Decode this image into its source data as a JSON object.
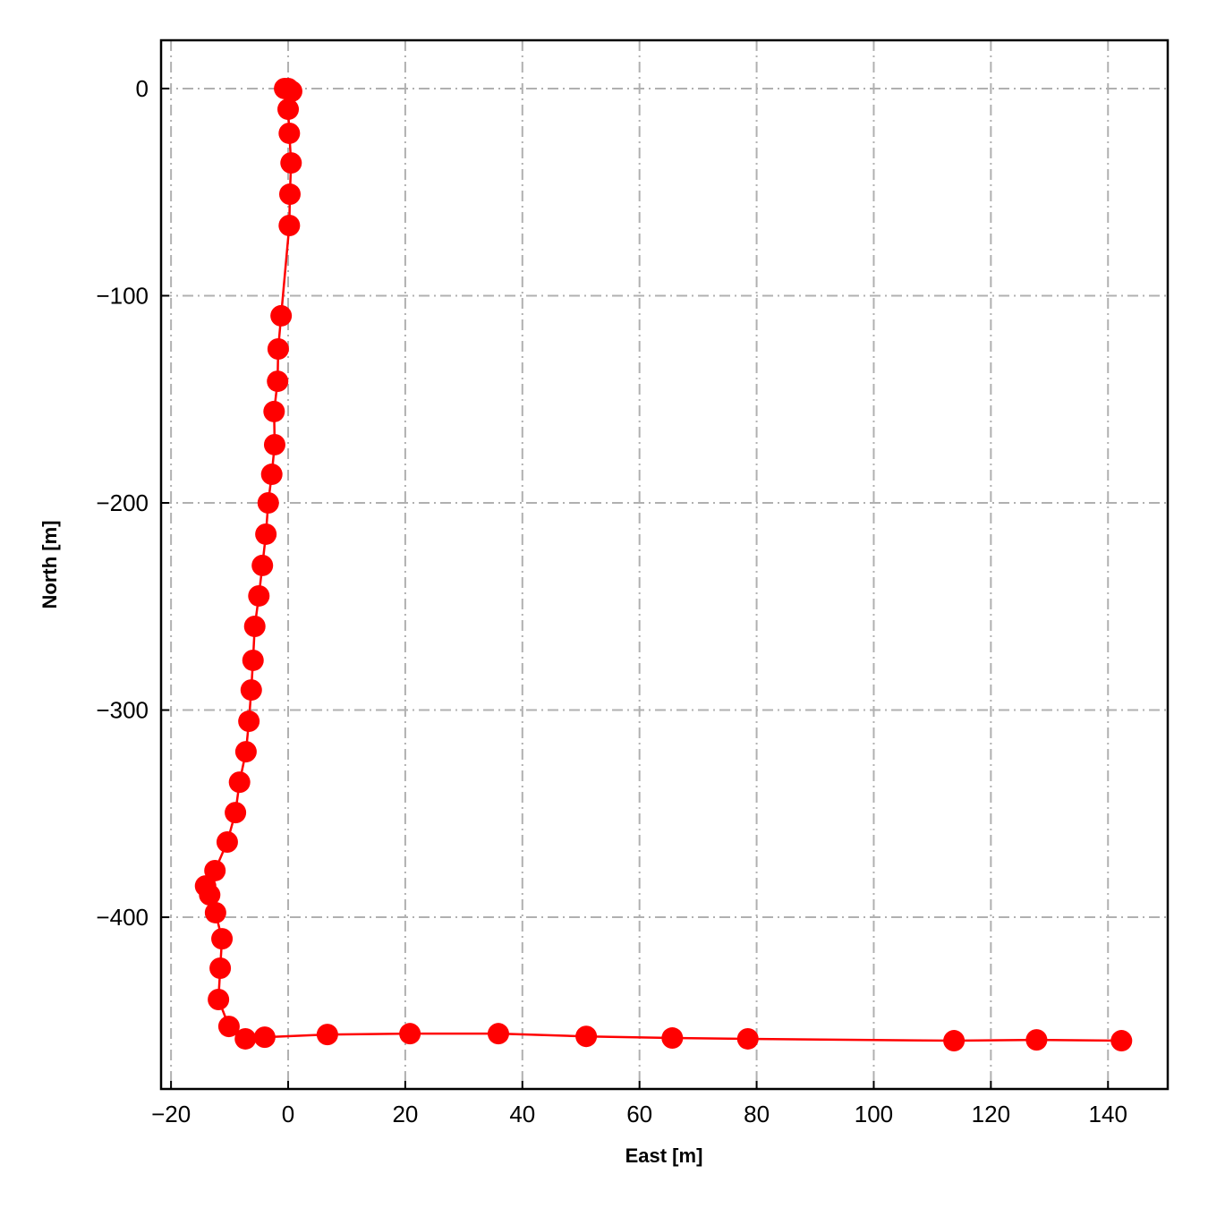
{
  "chart_data": {
    "type": "line",
    "xlabel": "East [m]",
    "ylabel": "North [m]",
    "x": [
      -0.6,
      0,
      0.6,
      0,
      0.2,
      0.5,
      0.3,
      0.2,
      -1.2,
      -1.7,
      -1.8,
      -2.4,
      -2.3,
      -2.8,
      -3.4,
      -3.8,
      -4.4,
      -5,
      -5.7,
      -6,
      -6.3,
      -6.7,
      -7.2,
      -8.3,
      -9,
      -10.4,
      -12.5,
      -14.1,
      -13.4,
      -12.4,
      -11.3,
      -11.6,
      -11.9,
      -10.1,
      -7.3,
      -4,
      6.7,
      20.8,
      35.9,
      50.9,
      65.6,
      78.5,
      113.7,
      127.8,
      142.3
    ],
    "series": [
      {
        "color": "#ff0000",
        "values": [
          0,
          0,
          -1.3,
          -10,
          -21.6,
          -35.9,
          -51,
          -66.1,
          -109.7,
          -125.7,
          -141.3,
          -155.9,
          -171.9,
          -186.2,
          -200,
          -215.1,
          -230.2,
          -244.9,
          -259.6,
          -276,
          -290.3,
          -305.4,
          -320.1,
          -334.8,
          -349.5,
          -363.7,
          -377.5,
          -384.9,
          -389.2,
          -397.8,
          -410.4,
          -424.6,
          -439.7,
          -452.7,
          -458.7,
          -457.9,
          -456.6,
          -456.2,
          -456.2,
          -457.5,
          -458.3,
          -458.7,
          -459.6,
          -459.2,
          -459.6
        ]
      }
    ],
    "xlim": [
      -21.7,
      150.2
    ],
    "ylim": [
      -482.9,
      23.3
    ],
    "xticks": [
      {
        "value": -20,
        "label": "−20"
      },
      0,
      20,
      40,
      60,
      80,
      100,
      120,
      140
    ],
    "yticks": [
      {
        "value": -400,
        "label": "−400"
      },
      {
        "value": -300,
        "label": "−300"
      },
      {
        "value": -200,
        "label": "−200"
      },
      {
        "value": -100,
        "label": "−100"
      },
      0
    ],
    "grid": true
  }
}
